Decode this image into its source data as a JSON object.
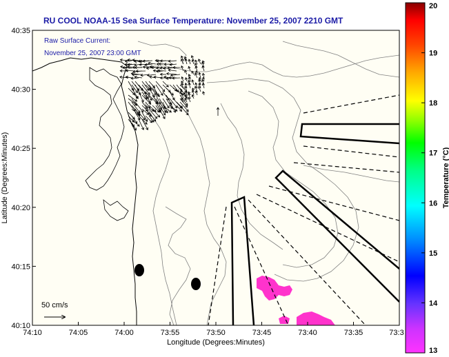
{
  "title": "RU COOL  NOAA-15  Sea Surface Temperature:  November 25, 2007 2210 GMT",
  "current": {
    "label": "Raw Surface Current:",
    "time": "November 25, 2007 23:00 GMT"
  },
  "scale_label": "50 cm/s",
  "axes": {
    "xlabel": "Longitude (Degrees:Minutes)",
    "ylabel": "Latitude (Degrees:Minutes)",
    "xticks": [
      "74:10",
      "74:05",
      "74:00",
      "73:55",
      "73:50",
      "73:45",
      "73:40",
      "73:35",
      "73:3"
    ],
    "yticks": [
      "40:35",
      "40:30",
      "40:25",
      "40:20",
      "40:15",
      "40:10"
    ]
  },
  "colorbar": {
    "label": "Temperature (°C)",
    "ticks": [
      "20",
      "19",
      "18",
      "17",
      "16",
      "15",
      "14",
      "13"
    ],
    "min": 13,
    "max": 20
  },
  "colors": {
    "title": "#1a1aa6",
    "sst_patch": "#ff33cc",
    "land": "#fffef4",
    "contour": "#808080"
  }
}
